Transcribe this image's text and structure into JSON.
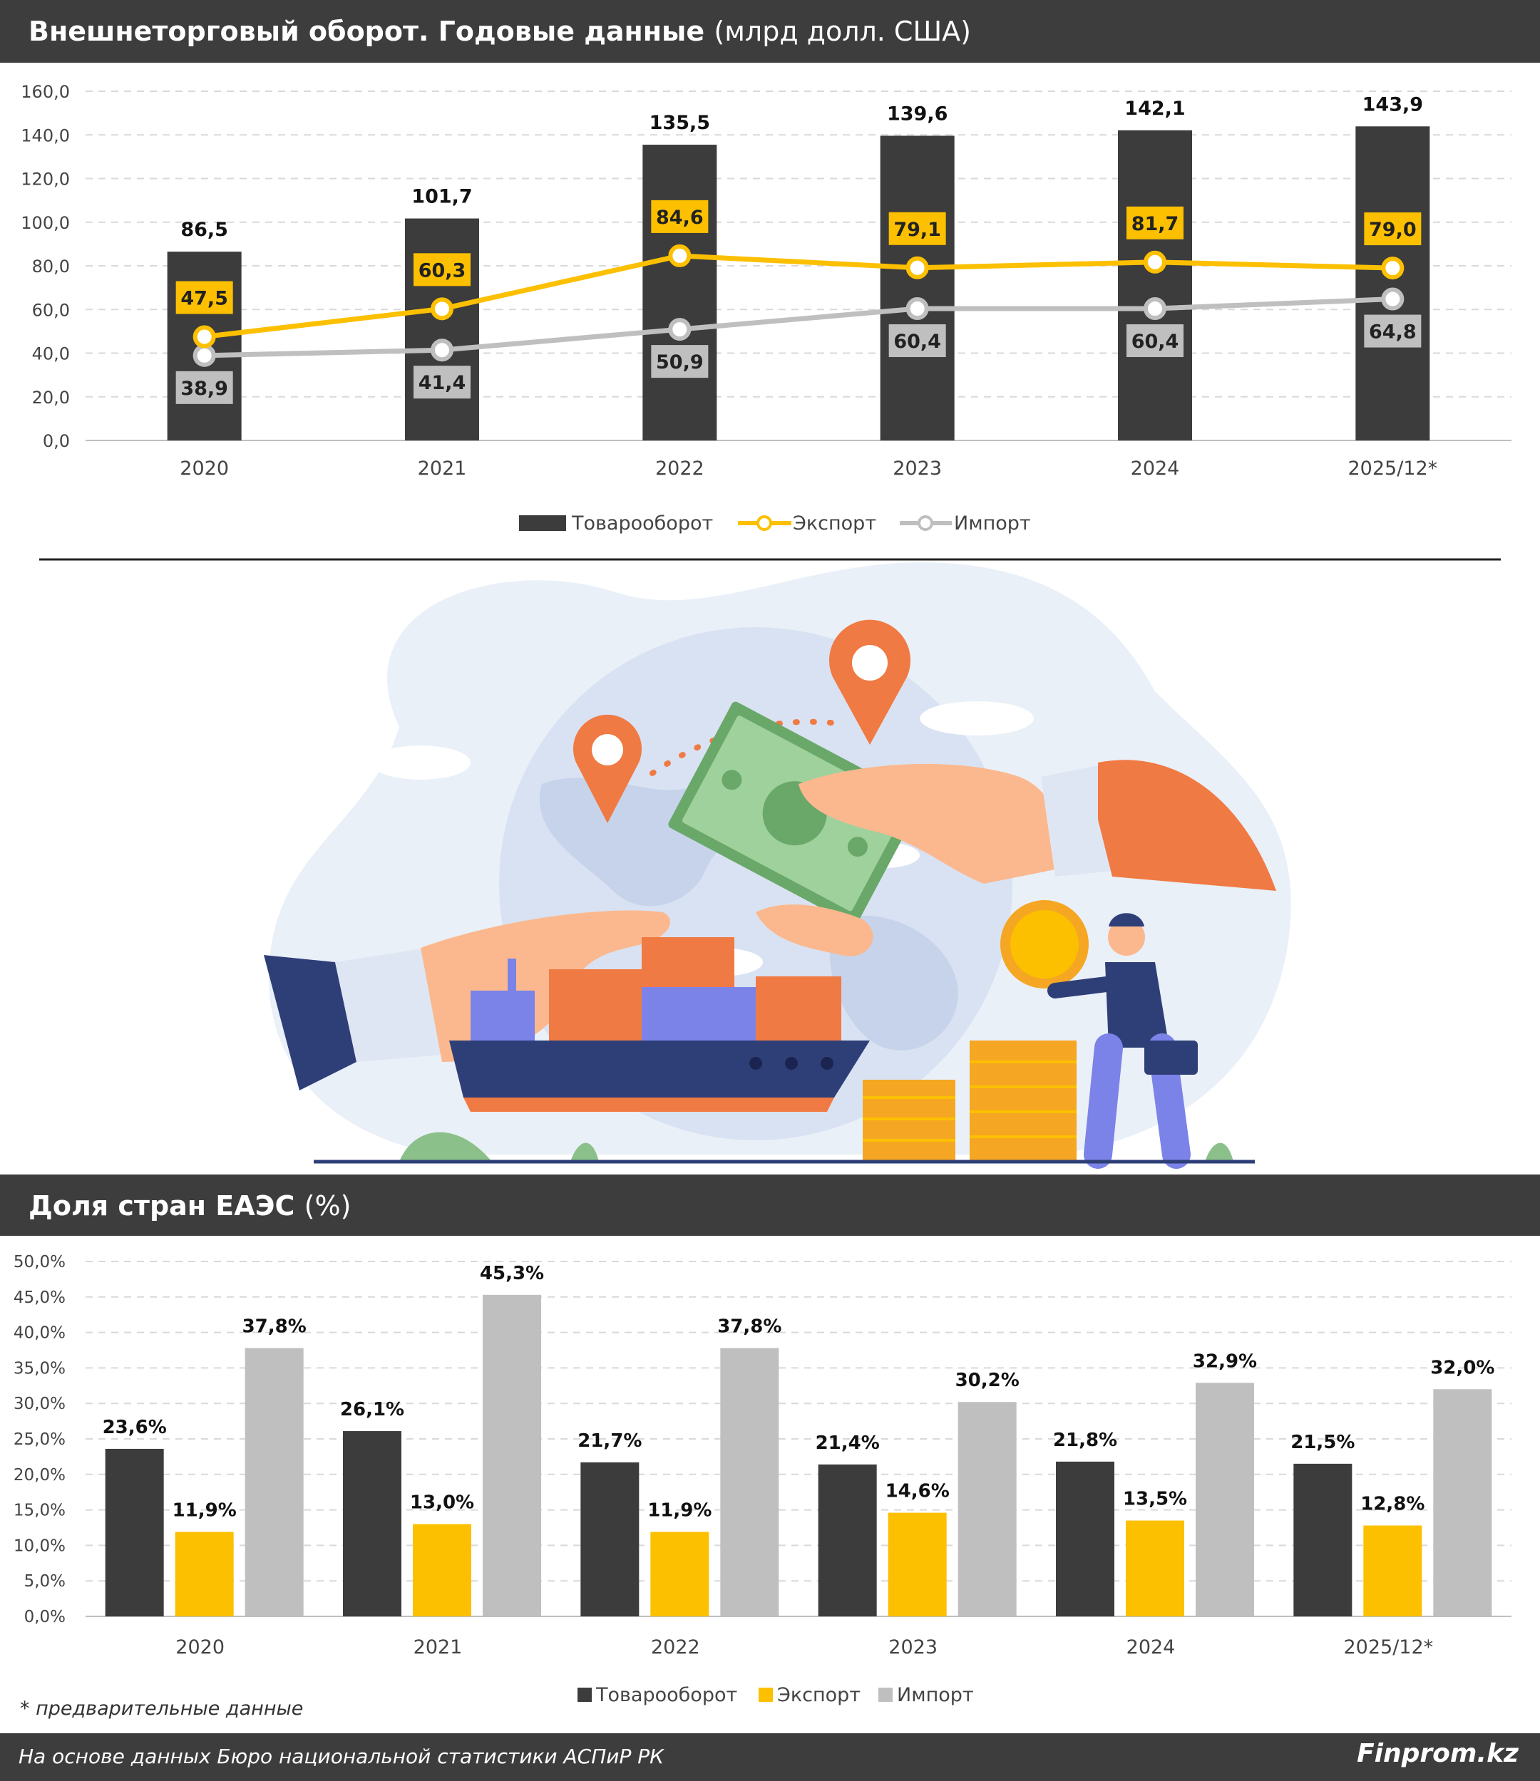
{
  "header1": {
    "title": "Внешнеторговый оборот. Годовые данные",
    "unit": "(млрд долл. США)"
  },
  "header2": {
    "title": "Доля стран ЕАЭС",
    "unit": "(%)"
  },
  "footnote": "* предварительные данные",
  "footer": {
    "source": "На основе данных Бюро национальной статистики АСПиР РК",
    "brand": "Finprom.kz"
  },
  "colors": {
    "turnover": "#3c3c3c",
    "export": "#fcc000",
    "import": "#bfbfbf",
    "band": "#3d3d3d"
  },
  "illustration_icons": [
    "map-pin-icon",
    "globe-icon",
    "cash-icon",
    "coin-icon",
    "cargo-ship-icon",
    "businessman-icon",
    "coin-stacks-icon",
    "plant-icon"
  ],
  "chart_data": [
    {
      "type": "bar",
      "title": "Внешнеторговый оборот. Годовые данные (млрд долл. США)",
      "categories": [
        "2020",
        "2021",
        "2022",
        "2023",
        "2024",
        "2025/12*"
      ],
      "yticks": [
        "0,0",
        "20,0",
        "40,0",
        "60,0",
        "80,0",
        "100,0",
        "120,0",
        "140,0",
        "160,0"
      ],
      "ylim": [
        0,
        160
      ],
      "grid": true,
      "legend": "bottom",
      "series": [
        {
          "name": "Товарооборот",
          "kind": "bar",
          "values": [
            86.5,
            101.7,
            135.5,
            139.6,
            142.1,
            143.9
          ],
          "labels": [
            "86,5",
            "101,7",
            "135,5",
            "139,6",
            "142,1",
            "143,9"
          ]
        },
        {
          "name": "Экспорт",
          "kind": "line",
          "values": [
            47.5,
            60.3,
            84.6,
            79.1,
            81.7,
            79.0
          ],
          "labels": [
            "47,5",
            "60,3",
            "84,6",
            "79,1",
            "81,7",
            "79,0"
          ]
        },
        {
          "name": "Импорт",
          "kind": "line",
          "values": [
            38.9,
            41.4,
            50.9,
            60.4,
            60.4,
            64.8
          ],
          "labels": [
            "38,9",
            "41,4",
            "50,9",
            "60,4",
            "60,4",
            "64,8"
          ]
        }
      ]
    },
    {
      "type": "bar",
      "title": "Доля стран ЕАЭС (%)",
      "categories": [
        "2020",
        "2021",
        "2022",
        "2023",
        "2024",
        "2025/12*"
      ],
      "yticks": [
        "0,0%",
        "5,0%",
        "10,0%",
        "15,0%",
        "20,0%",
        "25,0%",
        "30,0%",
        "35,0%",
        "40,0%",
        "45,0%",
        "50,0%"
      ],
      "ylim": [
        0,
        50
      ],
      "grid": true,
      "legend": "bottom",
      "series": [
        {
          "name": "Товарооборот",
          "values": [
            23.6,
            26.1,
            21.7,
            21.4,
            21.8,
            21.5
          ],
          "labels": [
            "23,6%",
            "26,1%",
            "21,7%",
            "21,4%",
            "21,8%",
            "21,5%"
          ]
        },
        {
          "name": "Экспорт",
          "values": [
            11.9,
            13.0,
            11.9,
            14.6,
            13.5,
            12.8
          ],
          "labels": [
            "11,9%",
            "13,0%",
            "11,9%",
            "14,6%",
            "13,5%",
            "12,8%"
          ]
        },
        {
          "name": "Импорт",
          "values": [
            37.8,
            45.3,
            37.8,
            30.2,
            32.9,
            32.0
          ],
          "labels": [
            "37,8%",
            "45,3%",
            "37,8%",
            "30,2%",
            "32,9%",
            "32,0%"
          ]
        }
      ]
    }
  ]
}
